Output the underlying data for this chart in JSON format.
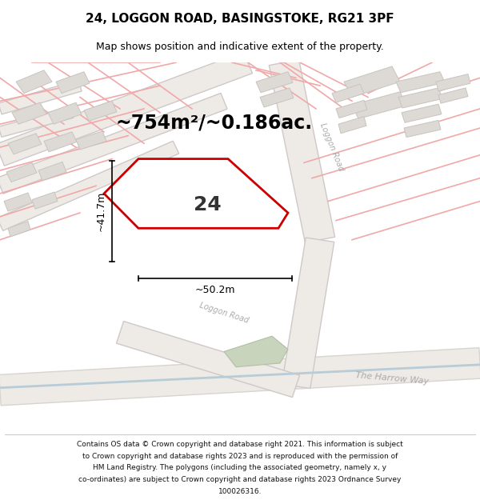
{
  "title": "24, LOGGON ROAD, BASINGSTOKE, RG21 3PF",
  "subtitle": "Map shows position and indicative extent of the property.",
  "area_text": "~754m²/~0.186ac.",
  "width_label": "~50.2m",
  "height_label": "~41.7m",
  "plot_number": "24",
  "footer_lines": [
    "Contains OS data © Crown copyright and database right 2021. This information is subject",
    "to Crown copyright and database rights 2023 and is reproduced with the permission of",
    "HM Land Registry. The polygons (including the associated geometry, namely x, y",
    "co-ordinates) are subject to Crown copyright and database rights 2023 Ordnance Survey",
    "100026316."
  ],
  "map_bg": "#f5f2ef",
  "road_fill": "#f0ece8",
  "road_edge": "#e0b8b8",
  "plot_color": "#cc0000",
  "building_fill": "#dddad6",
  "building_edge": "#c8c4c0",
  "green_fill": "#c8d4bc",
  "green_edge": "#b0c0a4",
  "road_label_color": "#aaaaaa",
  "dim_color": "#000000",
  "text_color": "#000000",
  "thin_red": "#f0a8a8",
  "title_fontsize": 11,
  "subtitle_fontsize": 9,
  "area_fontsize": 17,
  "dim_fontsize": 9,
  "plot_label_fontsize": 18,
  "road_label_fontsize": 7,
  "footer_fontsize": 6.5
}
